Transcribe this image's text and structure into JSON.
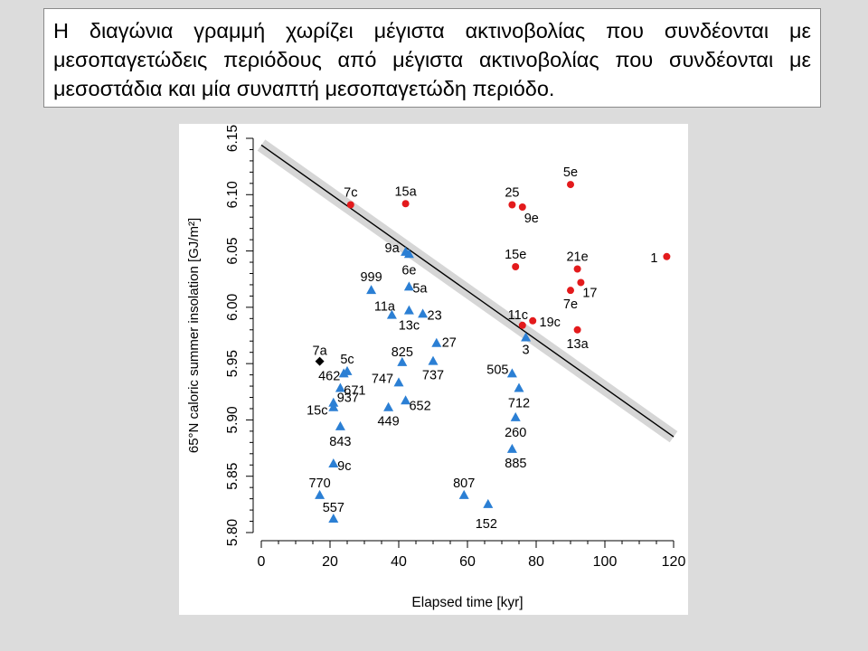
{
  "caption": "Η διαγώνια γραμμή χωρίζει μέγιστα ακτινοβολίας που συνδέονται με μεσοπαγετώδεις περιόδους από μέγιστα ακτινοβολίας που συνδέονται με μεσοστάδια και μία συναπτή μεσοπαγετώδη περιόδο.",
  "colors": {
    "interglacial": "#e31a1c",
    "interstadial": "#2b7fd4",
    "ambiguous": "#000000",
    "band": "#d6d6d6",
    "line": "#000000"
  },
  "chart_data": {
    "type": "scatter",
    "xlabel": "Elapsed time [kyr]",
    "ylabel": "65°N caloric summer insolation [GJ/m²]",
    "xlim": [
      0,
      120
    ],
    "ylim": [
      5.8,
      6.15
    ],
    "xticks": [
      "0",
      "20",
      "40",
      "60",
      "80",
      "100",
      "120"
    ],
    "yticks": [
      "5.80",
      "5.85",
      "5.90",
      "5.95",
      "6.00",
      "6.05",
      "6.10",
      "6.15"
    ],
    "grid": false,
    "legend": "none",
    "separator_line": {
      "x": [
        0,
        120
      ],
      "y": [
        6.144,
        5.885
      ]
    },
    "series": [
      {
        "marker": "circle",
        "color": "#e31a1c",
        "points": [
          {
            "label": "7c",
            "x": 26,
            "y": 6.091
          },
          {
            "label": "15a",
            "x": 42,
            "y": 6.092
          },
          {
            "label": "25",
            "x": 73,
            "y": 6.091
          },
          {
            "label": "9e",
            "x": 76,
            "y": 6.089
          },
          {
            "label": "5e",
            "x": 90,
            "y": 6.109
          },
          {
            "label": "15e",
            "x": 74,
            "y": 6.036
          },
          {
            "label": "21e",
            "x": 92,
            "y": 6.034
          },
          {
            "label": "17",
            "x": 93,
            "y": 6.022
          },
          {
            "label": "7e",
            "x": 90,
            "y": 6.015
          },
          {
            "label": "1",
            "x": 118,
            "y": 6.045
          },
          {
            "label": "11c",
            "x": 76,
            "y": 5.984
          },
          {
            "label": "19c",
            "x": 79,
            "y": 5.988
          },
          {
            "label": "13a",
            "x": 92,
            "y": 5.98
          }
        ]
      },
      {
        "marker": "triangle",
        "color": "#2b7fd4",
        "points": [
          {
            "label": "9a",
            "x": 42,
            "y": 6.049
          },
          {
            "label": "6e",
            "x": 43,
            "y": 6.047
          },
          {
            "label": "999",
            "x": 32,
            "y": 6.015
          },
          {
            "label": "5a",
            "x": 43,
            "y": 6.018
          },
          {
            "label": "11a",
            "x": 38,
            "y": 5.993
          },
          {
            "label": "13c",
            "x": 43,
            "y": 5.997
          },
          {
            "label": "23",
            "x": 47,
            "y": 5.994
          },
          {
            "label": "27",
            "x": 51,
            "y": 5.968
          },
          {
            "label": "3",
            "x": 77,
            "y": 5.973
          },
          {
            "label": "825",
            "x": 41,
            "y": 5.951
          },
          {
            "label": "737",
            "x": 50,
            "y": 5.952
          },
          {
            "label": "5c",
            "x": 25,
            "y": 5.943
          },
          {
            "label": "462",
            "x": 24,
            "y": 5.941
          },
          {
            "label": "747",
            "x": 40,
            "y": 5.933
          },
          {
            "label": "671",
            "x": 23,
            "y": 5.928
          },
          {
            "label": "505",
            "x": 73,
            "y": 5.941
          },
          {
            "label": "712",
            "x": 75,
            "y": 5.928
          },
          {
            "label": "937",
            "x": 21,
            "y": 5.915
          },
          {
            "label": "15c",
            "x": 21,
            "y": 5.911
          },
          {
            "label": "449",
            "x": 37,
            "y": 5.911
          },
          {
            "label": "652",
            "x": 42,
            "y": 5.917
          },
          {
            "label": "260",
            "x": 74,
            "y": 5.902
          },
          {
            "label": "843",
            "x": 23,
            "y": 5.894
          },
          {
            "label": "885",
            "x": 73,
            "y": 5.874
          },
          {
            "label": "9c",
            "x": 21,
            "y": 5.861
          },
          {
            "label": "770",
            "x": 17,
            "y": 5.833
          },
          {
            "label": "807",
            "x": 59,
            "y": 5.833
          },
          {
            "label": "152",
            "x": 66,
            "y": 5.825
          },
          {
            "label": "557",
            "x": 21,
            "y": 5.812
          }
        ]
      },
      {
        "marker": "diamond",
        "color": "#000000",
        "points": [
          {
            "label": "7a",
            "x": 17,
            "y": 5.952
          }
        ]
      }
    ]
  }
}
